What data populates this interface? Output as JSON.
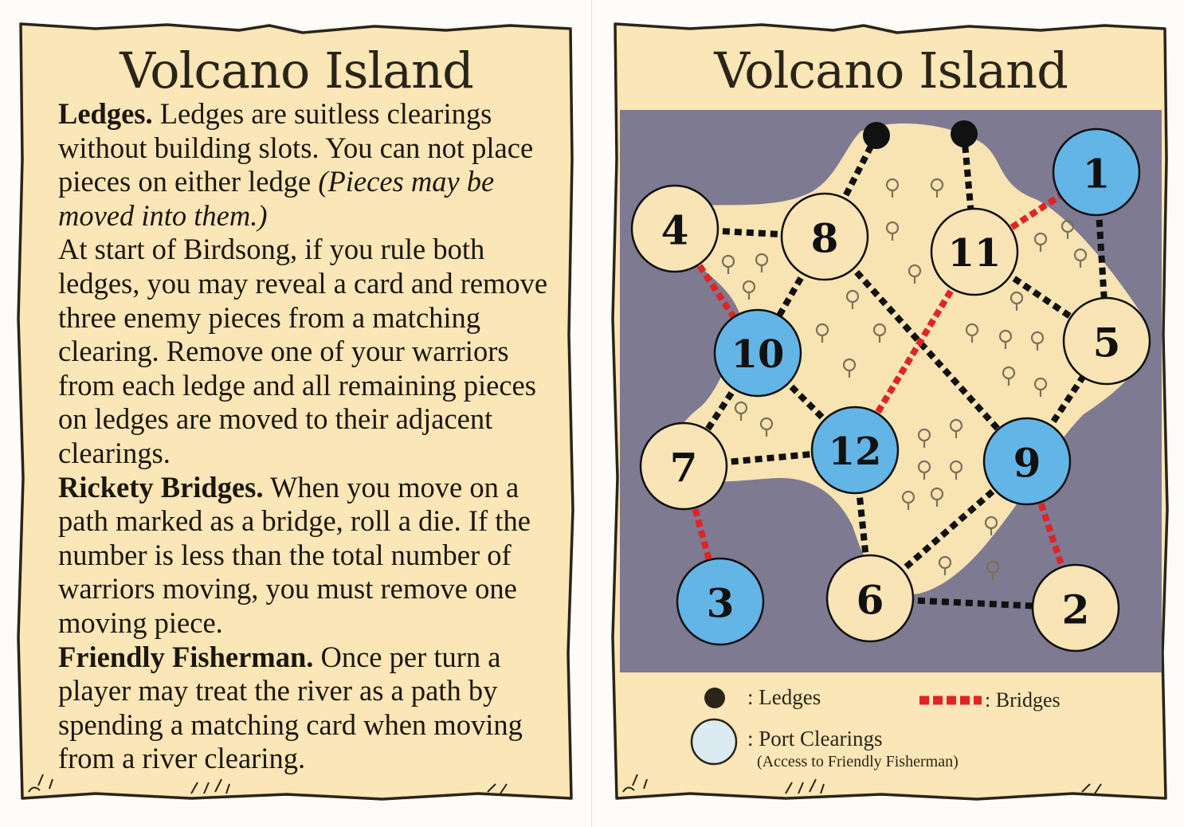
{
  "left_card": {
    "title": "Volcano Island",
    "ledges": {
      "heading": "Ledges.",
      "text1": " Ledges are suitless clearings without building slots. You can not place pieces on either ledge ",
      "italic": "(Pieces may be moved into them.)",
      "text2": "At start of Birdsong, if you rule both ledges, you may reveal a card and remove three enemy pieces from a matching clearing. Remove one of your warriors from each ledge and all remaining pieces on ledges are moved to their adjacent clearings."
    },
    "rickety_bridges": {
      "heading": "Rickety Bridges.",
      "text": " When you move on a path marked as a bridge, roll a die. If the number is less than the total number of warriors moving, you must remove one moving piece."
    },
    "friendly_fisherman": {
      "heading": "Friendly Fisherman.",
      "text": " Once per turn a player may treat the river as a path by spending a matching card when moving from a river clearing."
    }
  },
  "right_card": {
    "title": "Volcano Island",
    "clearings": [
      {
        "id": "1",
        "port": true
      },
      {
        "id": "2",
        "port": false
      },
      {
        "id": "3",
        "port": true
      },
      {
        "id": "4",
        "port": false
      },
      {
        "id": "5",
        "port": false
      },
      {
        "id": "6",
        "port": false
      },
      {
        "id": "7",
        "port": false
      },
      {
        "id": "8",
        "port": false
      },
      {
        "id": "9",
        "port": true
      },
      {
        "id": "10",
        "port": true
      },
      {
        "id": "11",
        "port": false
      },
      {
        "id": "12",
        "port": true
      }
    ],
    "paths": [
      [
        "4",
        "8"
      ],
      [
        "8",
        "10"
      ],
      [
        "10",
        "7"
      ],
      [
        "10",
        "12"
      ],
      [
        "7",
        "12"
      ],
      [
        "12",
        "6"
      ],
      [
        "6",
        "9"
      ],
      [
        "6",
        "2"
      ],
      [
        "9",
        "5"
      ],
      [
        "11",
        "5"
      ],
      [
        "1",
        "5"
      ],
      [
        "8",
        "9"
      ]
    ],
    "bridges": [
      [
        "4",
        "10"
      ],
      [
        "7",
        "3"
      ],
      [
        "9",
        "2"
      ],
      [
        "11",
        "1"
      ],
      [
        "12",
        "11"
      ]
    ],
    "ledge_paths": [
      [
        "ledge_a",
        "8"
      ],
      [
        "ledge_b",
        "11"
      ]
    ],
    "legend": {
      "ledges_label": ": Ledges",
      "bridges_label": ": Bridges",
      "port_label": ": Port Clearings",
      "port_sub": "(Access to Friendly Fisherman)"
    }
  },
  "colors": {
    "parchment": "#fae6b6",
    "parchment_edge": "#2b2418",
    "water": "#7e7a92",
    "island": "#f8e3b3",
    "clearing": "#f9e4b6",
    "port": "#63b5e6",
    "bridge": "#e02424",
    "path": "#111111",
    "port_legend": "#dceaf2"
  }
}
